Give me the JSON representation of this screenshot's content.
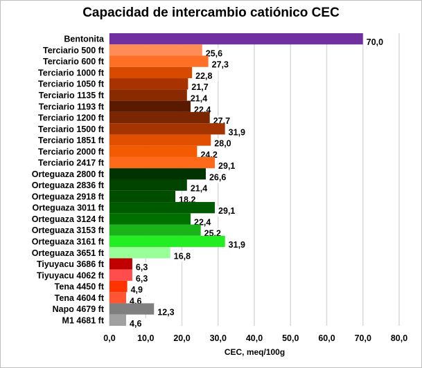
{
  "chart_data": {
    "type": "bar",
    "orientation": "horizontal",
    "title": "Capacidad de intercambio catiónico CEC",
    "xlabel": "CEC, meq/100g",
    "ylabel": "",
    "xlim": [
      0,
      80
    ],
    "xticks": [
      "0,0",
      "10,0",
      "20,0",
      "30,0",
      "40,0",
      "50,0",
      "60,0",
      "70,0",
      "80,0"
    ],
    "grid": "vertical",
    "categories": [
      "Bentonita",
      "Terciario 500 ft",
      "Terciario 600 ft",
      "Terciario 1000 ft",
      "Terciario 1050 ft",
      "Terciario 1135 ft",
      "Terciario 1193 ft",
      "Terciario 1200 ft",
      "Terciario 1500 ft",
      "Terciario 1851 ft",
      "Terciario 2000 ft",
      "Terciario 2417 ft",
      "Orteguaza 2800 ft",
      "Orteguaza 2836 ft",
      "Orteguaza 2918 ft",
      "Orteguaza 3011 ft",
      "Orteguaza 3124 ft",
      "Orteguaza 3153 ft",
      "Orteguaza 3161 ft",
      "Orteguaza 3651 ft",
      "Tiyuyacu 3686 ft",
      "Tiyuyacu 4062 ft",
      "Tena 4450 ft",
      "Tena 4604 ft",
      "Napo 4679 ft",
      "M1 4681 ft"
    ],
    "values": [
      70.0,
      25.6,
      27.3,
      22.8,
      21.7,
      21.4,
      22.4,
      27.7,
      31.9,
      28.0,
      24.2,
      29.1,
      26.6,
      21.4,
      18.2,
      29.1,
      22.4,
      25.2,
      31.9,
      16.8,
      6.3,
      6.3,
      4.9,
      4.6,
      12.3,
      4.6
    ],
    "data_labels": [
      "70,0",
      "25,6",
      "27,3",
      "22,8",
      "21,7",
      "21,4",
      "22,4",
      "27,7",
      "31,9",
      "28,0",
      "24,2",
      "29,1",
      "26,6",
      "21,4",
      "18,2",
      "29,1",
      "22,4",
      "25,2",
      "31,9",
      "16,8",
      "6,3",
      "6,3",
      "4,9",
      "4,6",
      "12,3",
      "4,6"
    ],
    "colors": [
      "#7030a0",
      "#ff8c55",
      "#ff6f26",
      "#d94a00",
      "#a83300",
      "#8a2a00",
      "#5a1a00",
      "#7a2600",
      "#a53500",
      "#e05000",
      "#f45a00",
      "#ff6a1a",
      "#003300",
      "#004400",
      "#004d00",
      "#005a00",
      "#007000",
      "#1ab41a",
      "#22ee22",
      "#99ff99",
      "#c00000",
      "#ff4d4d",
      "#ff3300",
      "#ff5533",
      "#7f7f7f",
      "#a0a0a0"
    ]
  }
}
